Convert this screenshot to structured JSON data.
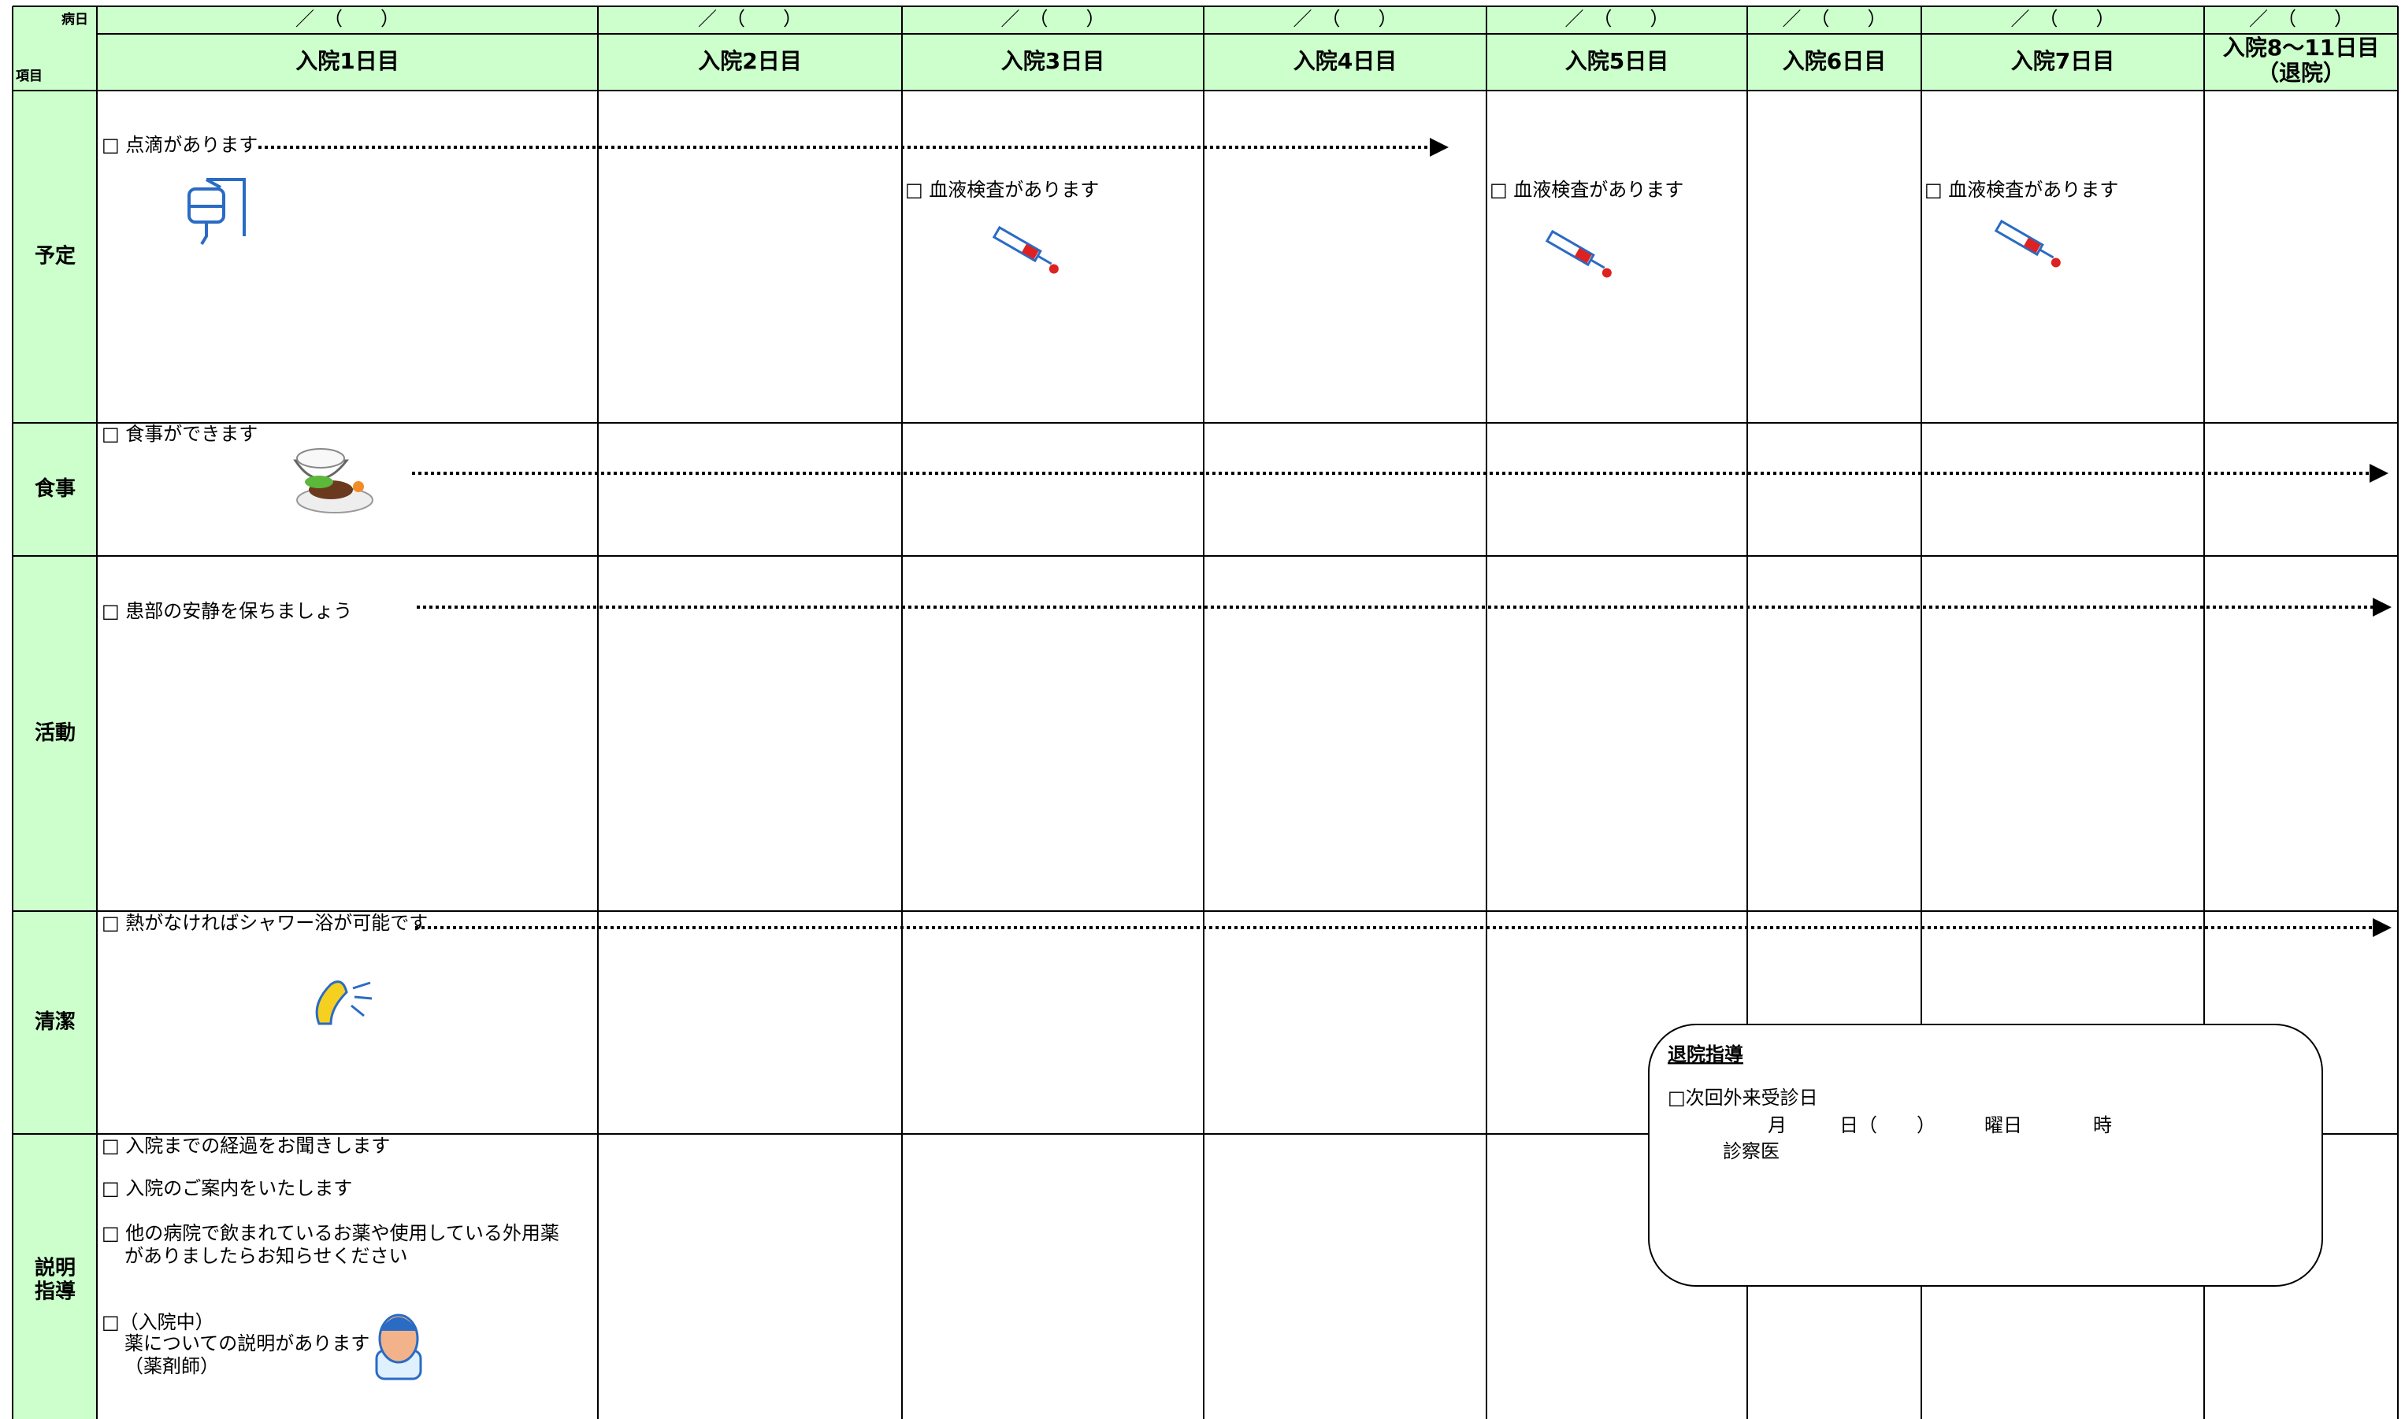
{
  "header": {
    "date_label": "病日",
    "item_label": "項目",
    "dates": [
      "／　（　　）",
      "／　（　　）",
      "／　（　　）",
      "／　（　　）",
      "／　（　　）",
      "／　（　　）",
      "／　（　　）",
      "／　（　　）"
    ],
    "days": [
      "入院1日目",
      "入院2日目",
      "入院3日目",
      "入院4日目",
      "入院5日目",
      "入院6日目",
      "入院7日目",
      [
        "入院8～11日目",
        "（退院）"
      ]
    ]
  },
  "rows": [
    {
      "label": [
        "予定"
      ],
      "items": [
        [
          "□ 点滴があります"
        ],
        [
          "□ 血液検査があります"
        ],
        [
          "□ 血液検査があります"
        ],
        [
          "□ 血液検査があります"
        ]
      ]
    },
    {
      "label": [
        "食事"
      ],
      "items": [
        [
          "□ 食事ができます"
        ]
      ]
    },
    {
      "label": [
        "活動"
      ],
      "items": [
        [
          "□ 患部の安静を保ちましょう"
        ]
      ]
    },
    {
      "label": [
        "清潔"
      ],
      "items": [
        [
          "□ 熱がなければシャワー浴が可能です"
        ]
      ]
    },
    {
      "label": [
        "説明",
        "指導"
      ],
      "items": [
        [
          "□ 入院までの経過をお聞きします"
        ],
        [
          "□ 入院のご案内をいたします"
        ],
        [
          "□ 他の病院で飲まれているお薬や使用している外用薬",
          "がありましたらお知らせください"
        ],
        [
          "□（入院中）",
          "薬についての説明があります",
          "（薬剤師）"
        ]
      ]
    }
  ],
  "discharge": {
    "title": "退院指導",
    "next_visit": "□次回外来受診日",
    "month": "月",
    "day": "日（",
    "paren": "）",
    "weekday": "曜日",
    "hour": "時",
    "doctor": "診察医"
  }
}
